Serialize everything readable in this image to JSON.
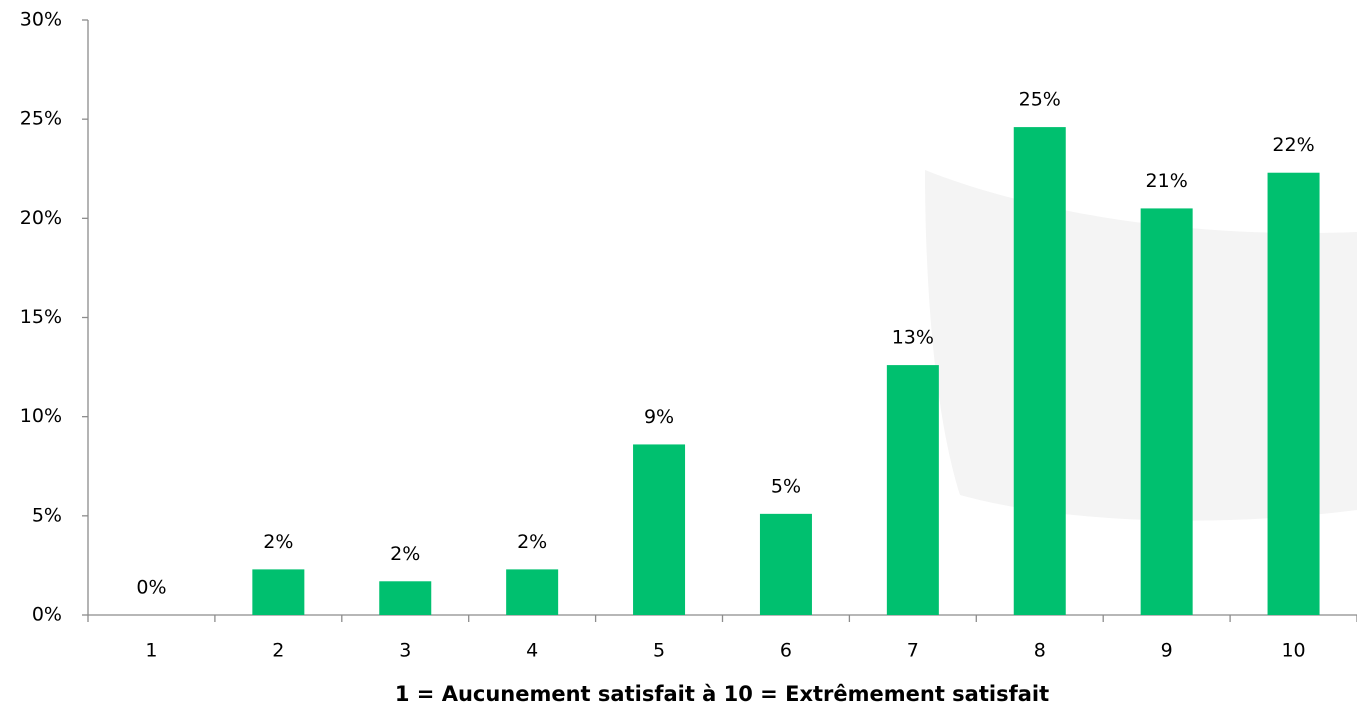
{
  "chart_data": {
    "type": "bar",
    "x_label": "1 = Aucunement satisfait à 10 = Extrêmement satisfait",
    "categories": [
      "1",
      "2",
      "3",
      "4",
      "5",
      "6",
      "7",
      "8",
      "9",
      "10"
    ],
    "values": [
      0,
      2.3,
      1.7,
      2.3,
      8.6,
      5.1,
      12.6,
      24.6,
      20.5,
      22.3
    ],
    "value_labels": [
      "0%",
      "2%",
      "2%",
      "2%",
      "9%",
      "5%",
      "13%",
      "25%",
      "21%",
      "22%"
    ],
    "color": "#00c06f",
    "ylim": [
      0,
      30
    ],
    "yticks": [
      {
        "value": 0,
        "label": "0%"
      },
      {
        "value": 5,
        "label": "5%"
      },
      {
        "value": 10,
        "label": "10%"
      },
      {
        "value": 15,
        "label": "15%"
      },
      {
        "value": 20,
        "label": "20%"
      },
      {
        "value": 25,
        "label": "25%"
      },
      {
        "value": 30,
        "label": "30%"
      }
    ],
    "grid": false
  }
}
